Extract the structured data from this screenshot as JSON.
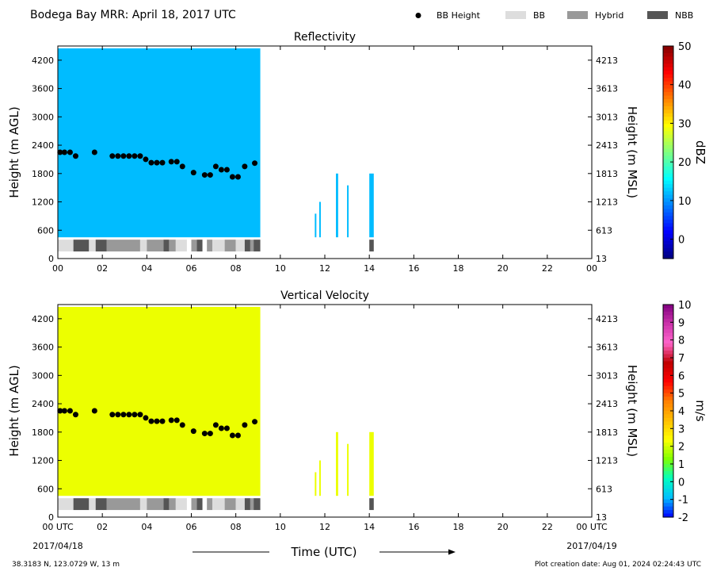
{
  "page_title": "Bodega Bay MRR:  April 18, 2017 UTC",
  "legend": [
    {
      "label": "BB Height",
      "kind": "dot",
      "color": "#000000"
    },
    {
      "label": "BB",
      "kind": "box",
      "color": "#dddddd"
    },
    {
      "label": "Hybrid",
      "kind": "box",
      "color": "#999999"
    },
    {
      "label": "NBB",
      "kind": "box",
      "color": "#555555"
    }
  ],
  "footer": {
    "location": "38.3183 N, 123.0729 W, 13 m",
    "creation": "Plot creation date: Aug 01, 2024 02:24:43 UTC",
    "date_start": "2017/04/18",
    "date_end": "2017/04/19"
  },
  "chart_data": [
    {
      "type": "heatmap",
      "title": "Reflectivity",
      "xlabel": "",
      "ylabel": "Height (m AGL)",
      "ylabel_right": "Height (m MSL)",
      "xlim": [
        0,
        24
      ],
      "ylim": [
        0,
        4500
      ],
      "x_ticks": [
        "00",
        "02",
        "04",
        "06",
        "08",
        "10",
        "12",
        "14",
        "16",
        "18",
        "20",
        "22",
        "00"
      ],
      "y_ticks": [
        0,
        600,
        1200,
        1800,
        2400,
        3000,
        3600,
        4200
      ],
      "y_ticks_right": [
        13,
        613,
        1213,
        1813,
        2413,
        3013,
        3613,
        4213
      ],
      "colorbar": {
        "label": "dBZ",
        "range": [
          -5,
          50
        ],
        "ticks": [
          0,
          10,
          20,
          30,
          40,
          50
        ],
        "colors": [
          "#00007f",
          "#0000ff",
          "#007fff",
          "#00ffff",
          "#7fff7f",
          "#ffff00",
          "#ff7f00",
          "#ff0000",
          "#7f0000"
        ]
      },
      "field": {
        "default_value": 12,
        "bottom_level": 450,
        "top_level": 4450
      },
      "coverage": [
        {
          "x_start": 0.0,
          "x_end": 9.1,
          "y_top": 4450
        },
        {
          "x_start": 11.55,
          "x_end": 11.62,
          "y_top": 950
        },
        {
          "x_start": 11.75,
          "x_end": 11.82,
          "y_top": 1200
        },
        {
          "x_start": 12.5,
          "x_end": 12.6,
          "y_top": 1800
        },
        {
          "x_start": 13.0,
          "x_end": 13.07,
          "y_top": 1550
        },
        {
          "x_start": 14.0,
          "x_end": 14.2,
          "y_top": 1800
        }
      ]
    },
    {
      "type": "heatmap",
      "title": "Vertical Velocity",
      "xlabel": "Time (UTC)",
      "ylabel": "Height (m AGL)",
      "ylabel_right": "Height (m MSL)",
      "xlim": [
        0,
        24
      ],
      "ylim": [
        0,
        4500
      ],
      "x_ticks": [
        "00 UTC",
        "02",
        "04",
        "06",
        "08",
        "10",
        "12",
        "14",
        "16",
        "18",
        "20",
        "22",
        "00 UTC"
      ],
      "y_ticks": [
        0,
        600,
        1200,
        1800,
        2400,
        3000,
        3600,
        4200
      ],
      "y_ticks_right": [
        13,
        613,
        1213,
        1813,
        2413,
        3013,
        3613,
        4213
      ],
      "colorbar": {
        "label": "m/s",
        "range": [
          -2,
          10
        ],
        "ticks": [
          -2,
          -1,
          0,
          1,
          2,
          3,
          4,
          5,
          6,
          7,
          8,
          9,
          10
        ],
        "colors": [
          "#0000ff",
          "#00bfff",
          "#00ffbf",
          "#7fff00",
          "#ffff00",
          "#ffbf00",
          "#ff7f00",
          "#ff0000",
          "#bf0000",
          "#ff66cc",
          "#cc33aa",
          "#800080"
        ]
      },
      "field": {
        "default_value": 2.2,
        "bottom_level": 450,
        "top_level": 4450
      },
      "coverage": [
        {
          "x_start": 0.0,
          "x_end": 9.1,
          "y_top": 4450
        },
        {
          "x_start": 11.55,
          "x_end": 11.62,
          "y_top": 950
        },
        {
          "x_start": 11.75,
          "x_end": 11.82,
          "y_top": 1200
        },
        {
          "x_start": 12.5,
          "x_end": 12.6,
          "y_top": 1800
        },
        {
          "x_start": 13.0,
          "x_end": 13.07,
          "y_top": 1550
        },
        {
          "x_start": 14.0,
          "x_end": 14.2,
          "y_top": 1800
        }
      ]
    }
  ],
  "bb_height": [
    {
      "t": 0.1,
      "h": 2250
    },
    {
      "t": 0.3,
      "h": 2250
    },
    {
      "t": 0.55,
      "h": 2250
    },
    {
      "t": 0.8,
      "h": 2170
    },
    {
      "t": 1.65,
      "h": 2250
    },
    {
      "t": 2.45,
      "h": 2170
    },
    {
      "t": 2.7,
      "h": 2170
    },
    {
      "t": 2.95,
      "h": 2170
    },
    {
      "t": 3.2,
      "h": 2170
    },
    {
      "t": 3.45,
      "h": 2170
    },
    {
      "t": 3.7,
      "h": 2170
    },
    {
      "t": 3.95,
      "h": 2100
    },
    {
      "t": 4.2,
      "h": 2030
    },
    {
      "t": 4.45,
      "h": 2030
    },
    {
      "t": 4.7,
      "h": 2030
    },
    {
      "t": 5.1,
      "h": 2050
    },
    {
      "t": 5.35,
      "h": 2050
    },
    {
      "t": 5.6,
      "h": 1950
    },
    {
      "t": 6.1,
      "h": 1820
    },
    {
      "t": 6.6,
      "h": 1770
    },
    {
      "t": 6.85,
      "h": 1770
    },
    {
      "t": 7.1,
      "h": 1950
    },
    {
      "t": 7.35,
      "h": 1880
    },
    {
      "t": 7.6,
      "h": 1880
    },
    {
      "t": 7.85,
      "h": 1730
    },
    {
      "t": 8.1,
      "h": 1730
    },
    {
      "t": 8.4,
      "h": 1950
    },
    {
      "t": 8.85,
      "h": 2020
    }
  ],
  "bb_type_bar": [
    {
      "start": 0.0,
      "end": 0.7,
      "type": "BB"
    },
    {
      "start": 0.7,
      "end": 1.4,
      "type": "NBB"
    },
    {
      "start": 1.4,
      "end": 1.7,
      "type": "BB"
    },
    {
      "start": 1.7,
      "end": 2.2,
      "type": "NBB"
    },
    {
      "start": 2.2,
      "end": 3.7,
      "type": "Hybrid"
    },
    {
      "start": 3.7,
      "end": 4.0,
      "type": "BB"
    },
    {
      "start": 4.0,
      "end": 4.75,
      "type": "Hybrid"
    },
    {
      "start": 4.75,
      "end": 5.0,
      "type": "NBB"
    },
    {
      "start": 5.0,
      "end": 5.3,
      "type": "Hybrid"
    },
    {
      "start": 5.3,
      "end": 5.8,
      "type": "BB"
    },
    {
      "start": 6.0,
      "end": 6.25,
      "type": "Hybrid"
    },
    {
      "start": 6.25,
      "end": 6.5,
      "type": "NBB"
    },
    {
      "start": 6.7,
      "end": 6.95,
      "type": "Hybrid"
    },
    {
      "start": 6.95,
      "end": 7.5,
      "type": "BB"
    },
    {
      "start": 7.5,
      "end": 8.0,
      "type": "Hybrid"
    },
    {
      "start": 8.0,
      "end": 8.4,
      "type": "BB"
    },
    {
      "start": 8.4,
      "end": 8.65,
      "type": "NBB"
    },
    {
      "start": 8.65,
      "end": 8.8,
      "type": "Hybrid"
    },
    {
      "start": 8.8,
      "end": 9.1,
      "type": "NBB"
    },
    {
      "start": 14.0,
      "end": 14.2,
      "type": "NBB"
    }
  ]
}
